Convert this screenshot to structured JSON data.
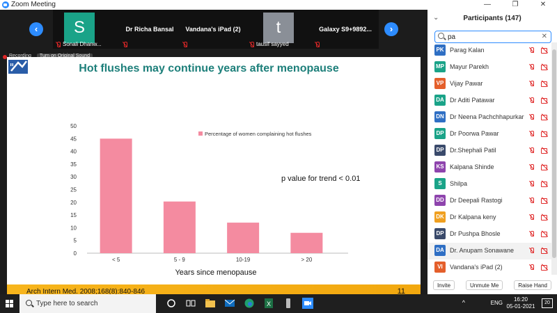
{
  "window": {
    "title": "Zoom Meeting"
  },
  "thumbnails": {
    "items": [
      {
        "name": "Sonali Dhanw...",
        "avatar": "S",
        "avatar_color": "#1aa388"
      },
      {
        "name": "Dr Richa Bansal"
      },
      {
        "name": "Vandana's iPad (2)"
      },
      {
        "name": "tausif sayyed",
        "avatar": "t",
        "avatar_color": "#8a8f97"
      },
      {
        "name": "Galaxy S9+9892..."
      }
    ]
  },
  "recording": {
    "label": "Recording",
    "sound_button": "Turn on Original Sound"
  },
  "slide": {
    "title": "Hot flushes may continue years after menopause",
    "annotation": "p value for trend < 0.01",
    "citation": "Arch Intern Med. 2008;168(8):840-846",
    "page_number": "11"
  },
  "chart_data": {
    "type": "bar",
    "categories": [
      "< 5",
      "5 - 9",
      "10-19",
      "> 20"
    ],
    "series": [
      {
        "name": "Percentage of women complaining hot flushes",
        "values": [
          45,
          20.3,
          12,
          8
        ]
      }
    ],
    "xlabel": "Years since menopause",
    "ylim": [
      0,
      50
    ],
    "yticks": [
      0,
      5,
      10,
      15,
      20,
      25,
      30,
      35,
      40,
      45,
      50
    ],
    "bar_color": "#f48ba0",
    "grid": false,
    "legend_position": "top-right"
  },
  "participants": {
    "title": "Participants (147)",
    "search_value": "pa",
    "list": [
      {
        "initials": "PK",
        "name": "Parag Kalan",
        "color": "#2f6fc4"
      },
      {
        "initials": "MP",
        "name": "Mayur Parekh",
        "color": "#1aa388"
      },
      {
        "initials": "VP",
        "name": "Vijay Pawar",
        "color": "#e45f2b"
      },
      {
        "initials": "DA",
        "name": "Dr Aditi Patawar",
        "color": "#1aa388"
      },
      {
        "initials": "DN",
        "name": "Dr Neena Pachchhapurkar",
        "color": "#2f6fc4"
      },
      {
        "initials": "DP",
        "name": "Dr Poorwa Pawar",
        "color": "#1aa388"
      },
      {
        "initials": "DP",
        "name": "Dr.Shephali Patil",
        "color": "#3a4a6b"
      },
      {
        "initials": "KS",
        "name": "Kalpana Shinde",
        "color": "#8e44ad"
      },
      {
        "initials": "S",
        "name": "Shilpa",
        "color": "#1aa388"
      },
      {
        "initials": "DD",
        "name": "Dr Deepali Rastogi",
        "color": "#8e44ad"
      },
      {
        "initials": "DK",
        "name": "Dr Kalpana keny",
        "color": "#f0a020"
      },
      {
        "initials": "DP",
        "name": "Dr Pushpa Bhosle",
        "color": "#3a4a6b"
      },
      {
        "initials": "DA",
        "name": "Dr. Anupam Sonawane",
        "color": "#2f6fc4"
      },
      {
        "initials": "VI",
        "name": "Vandana's iPad (2)",
        "color": "#e45f2b"
      }
    ],
    "buttons": {
      "invite": "Invite",
      "unmute": "Unmute Me",
      "raise_hand": "Raise Hand"
    }
  },
  "taskbar": {
    "search_placeholder": "Type here to search",
    "language": "ENG",
    "time": "16:20",
    "date": "05-01-2021",
    "notifications": "20"
  }
}
